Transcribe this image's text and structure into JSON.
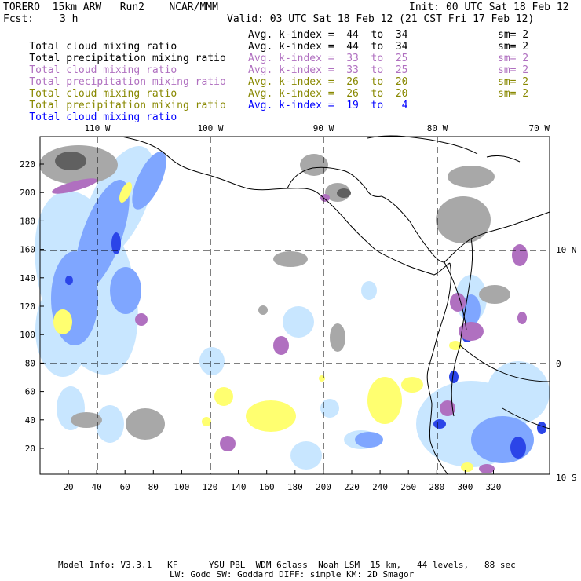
{
  "header": {
    "model": "TORERO  15km ARW   Run2    NCAR/MMM",
    "init": "Init: 00 UTC Sat 18 Feb 12",
    "fcst_label": "Fcst:",
    "fcst_value": "3 h",
    "valid": "Valid: 03 UTC Sat 18 Feb 12 (21 CST Fri 17 Feb 12)"
  },
  "legend": [
    {
      "name": "Total cloud mixing ratio",
      "kindex": "Avg. k-index =  44  to  34",
      "sm": "sm= 2",
      "color": "#000000"
    },
    {
      "name": "Total precipitation mixing ratio",
      "kindex": "Avg. k-index =  44  to  34",
      "sm": "sm= 2",
      "color": "#000000"
    },
    {
      "name": "Total cloud mixing ratio",
      "kindex": "Avg. k-index =  33  to  25",
      "sm": "sm= 2",
      "color": "#b070c0"
    },
    {
      "name": "Total precipitation mixing ratio",
      "kindex": "Avg. k-index =  33  to  25",
      "sm": "sm= 2",
      "color": "#b070c0"
    },
    {
      "name": "Total cloud mixing ratio",
      "kindex": "Avg. k-index =  26  to  20",
      "sm": "sm= 2",
      "color": "#888800"
    },
    {
      "name": "Total precipitation mixing ratio",
      "kindex": "Avg. k-index =  26  to  20",
      "sm": "sm= 2",
      "color": "#888800"
    },
    {
      "name": "Total cloud mixing ratio",
      "kindex": "Avg. k-index =  19  to   4",
      "sm": "",
      "color": "#0000ff"
    }
  ],
  "map": {
    "lon_labels": [
      "110 W",
      "100 W",
      "90 W",
      "80 W",
      "70 W"
    ],
    "lat_labels": [
      "10 N",
      "0",
      "10 S"
    ],
    "x_ticks": [
      "20",
      "40",
      "60",
      "80",
      "100",
      "120",
      "140",
      "160",
      "180",
      "200",
      "220",
      "240",
      "260",
      "280",
      "300",
      "320"
    ],
    "y_ticks": [
      "20",
      "40",
      "60",
      "80",
      "100",
      "120",
      "140",
      "160",
      "180",
      "200",
      "220"
    ],
    "colors": {
      "gray": "#a8a8a8",
      "dark_gray": "#606060",
      "purple": "#b070c0",
      "yellow": "#ffff70",
      "light_blue": "#c8e6ff",
      "mid_blue": "#7fa6ff",
      "blue": "#2b45e8",
      "coast": "#000000",
      "grid": "#000000"
    }
  },
  "footer": {
    "line1": "Model Info: V3.3.1   KF      YSU PBL  WDM 6class  Noah LSM  15 km,   44 levels,   88 sec",
    "line2": "LW: Godd SW: Goddard DIFF: simple KM: 2D Smagor"
  }
}
